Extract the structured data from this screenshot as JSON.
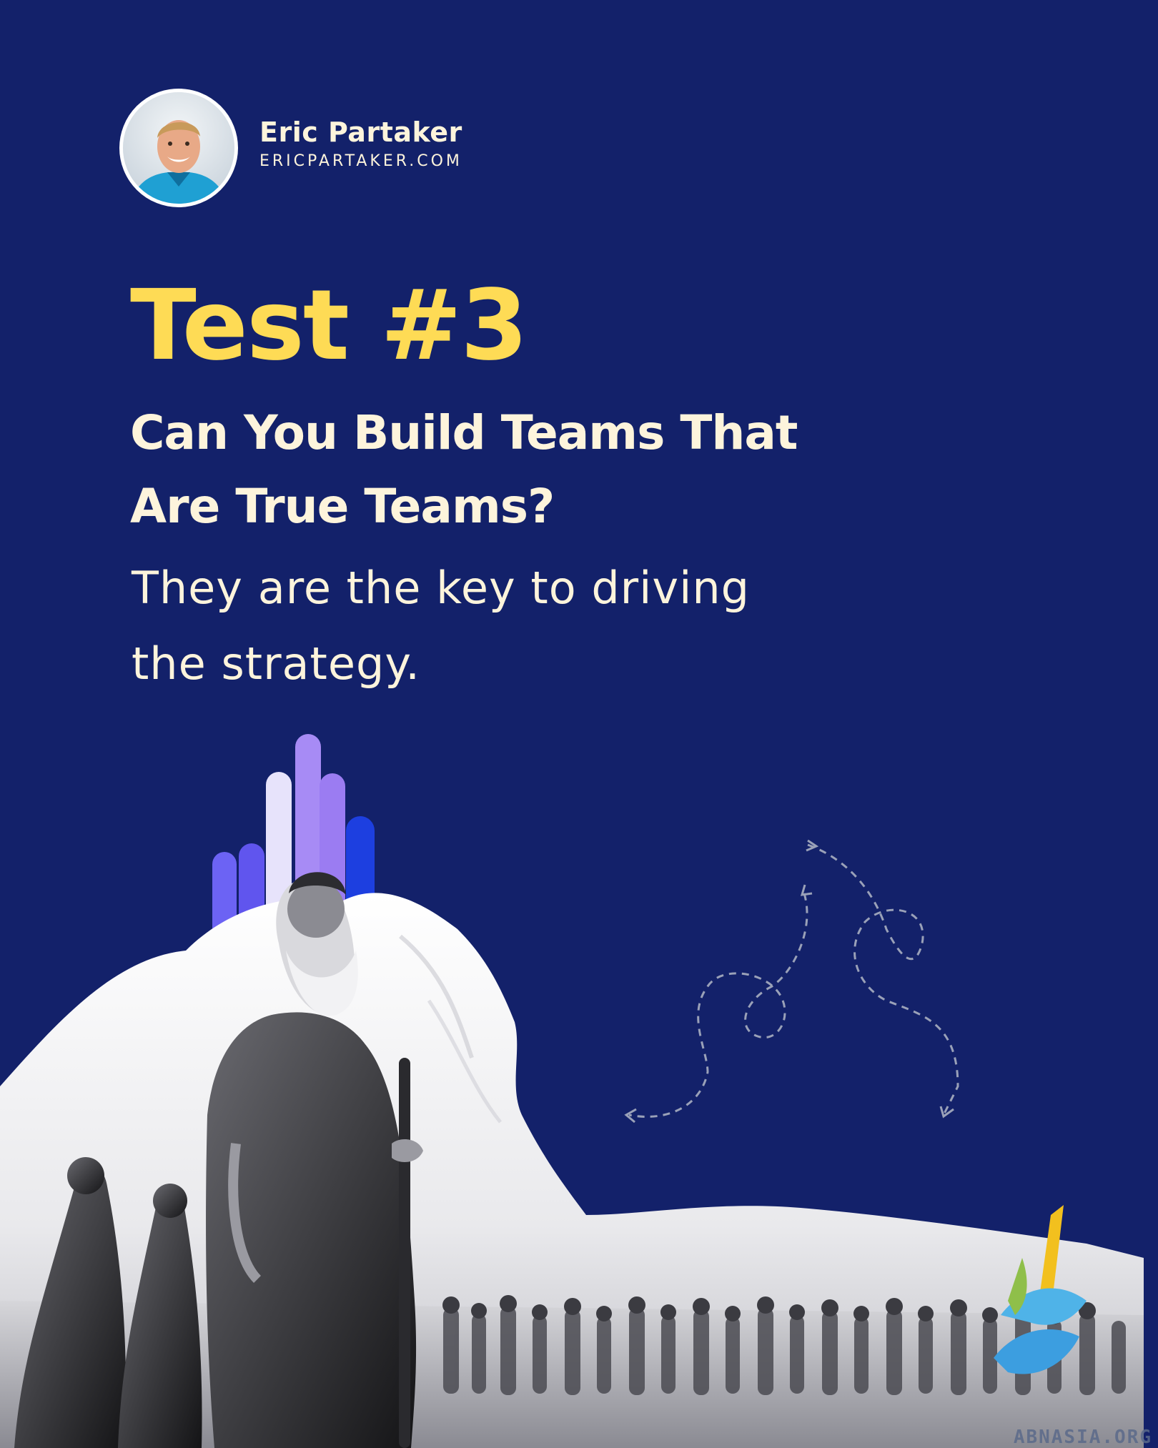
{
  "author": {
    "name": "Eric Partaker",
    "website": "ERICPARTAKER.COM"
  },
  "headline": "Test #3",
  "subheadline": {
    "line1": "Can You Build Teams That",
    "line2": "Are True Teams?"
  },
  "body": {
    "line1": "They are the key to driving",
    "line2": "the strategy."
  },
  "watermark": "ABNASIA.ORG",
  "colors": {
    "background": "#13216a",
    "headline": "#fedb55",
    "text": "#fdf4dc",
    "bar_violet": "#6c63f4",
    "bar_lavender": "#e7e3fb",
    "bar_purple": "#a78bf5",
    "bar_blue": "#1d3fe0"
  },
  "illustration": {
    "icons": [
      "dashed-arrows-icon",
      "color-bars-icon",
      "stylized-bird-logo-icon"
    ]
  }
}
